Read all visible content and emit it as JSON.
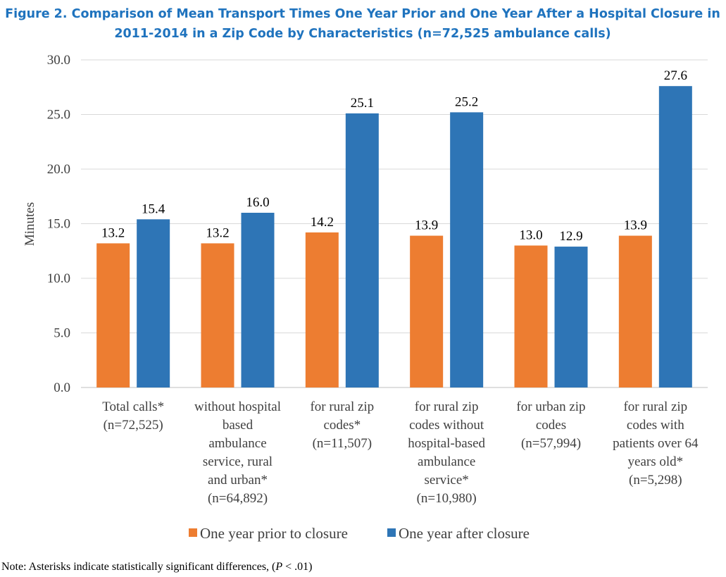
{
  "chart_data": {
    "type": "bar",
    "title": [
      "Figure 2. Comparison of Mean Transport Times One Year Prior and One Year After a Hospital Closure in",
      "2011-2014 in a Zip Code by Characteristics (n=72,525 ambulance calls)"
    ],
    "xlabel": "",
    "ylabel": "Minutes",
    "ylim": [
      0,
      30
    ],
    "yticks": [
      "0.0",
      "5.0",
      "10.0",
      "15.0",
      "20.0",
      "25.0",
      "30.0"
    ],
    "grid": true,
    "legend_position": "bottom",
    "categories": [
      [
        "Total calls*",
        "(n=72,525)"
      ],
      [
        "without hospital",
        "based",
        "ambulance",
        "service, rural",
        "and urban*",
        "(n=64,892)"
      ],
      [
        "for rural zip",
        "codes*",
        "(n=11,507)"
      ],
      [
        "for rural zip",
        "codes without",
        "hospital-based",
        "ambulance",
        "service*",
        "(n=10,980)"
      ],
      [
        "for urban zip",
        "codes",
        "(n=57,994)"
      ],
      [
        "for rural zip",
        "codes with",
        "patients over 64",
        "years old*",
        "(n=5,298)"
      ]
    ],
    "series": [
      {
        "name": "One year prior to closure",
        "color": "#ED7D31",
        "values": [
          13.2,
          13.2,
          14.2,
          13.9,
          13.0,
          13.9
        ],
        "labels": [
          "13.2",
          "13.2",
          "14.2",
          "13.9",
          "13.0",
          "13.9"
        ]
      },
      {
        "name": "One year after closure",
        "color": "#2E75B6",
        "values": [
          15.4,
          16.0,
          25.1,
          25.2,
          12.9,
          27.6
        ],
        "labels": [
          "15.4",
          "16.0",
          "25.1",
          "25.2",
          "12.9",
          "27.6"
        ]
      }
    ],
    "note": "Note: Asterisks indicate statistically significant differences, (P < .01)"
  }
}
